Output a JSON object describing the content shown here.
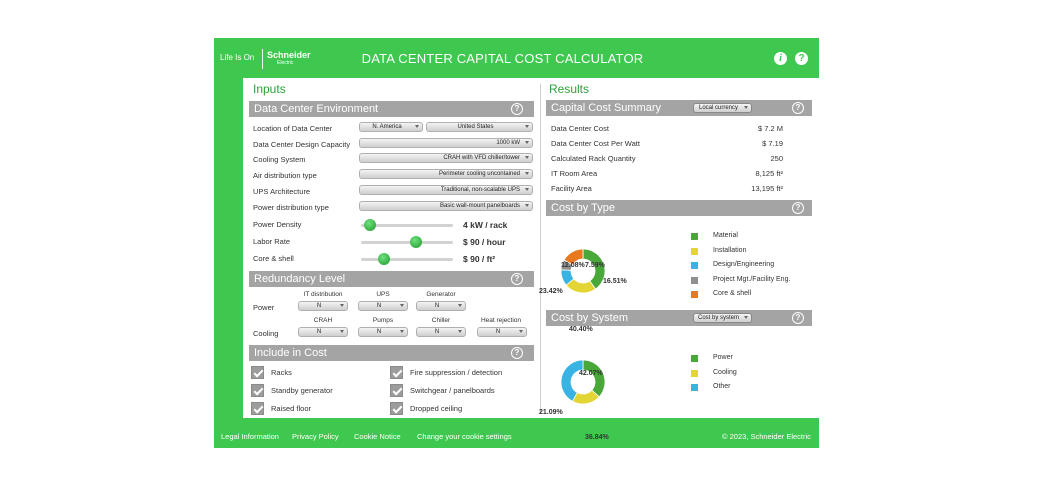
{
  "header": {
    "tagline": "Life Is On",
    "brand": "Schneider",
    "brand_sub": "Electric",
    "title": "DATA CENTER CAPITAL COST CALCULATOR",
    "info_icon": "i",
    "help_icon": "?"
  },
  "inputs": {
    "title": "Inputs",
    "environment": {
      "title": "Data Center Environment",
      "location_label": "Location of Data Center",
      "region_value": "N. America",
      "country_value": "United States",
      "capacity_label": "Data Center Design Capacity",
      "capacity_value": "1000 kW",
      "cooling_label": "Cooling System",
      "cooling_value": "CRAH with VFD chiller/tower",
      "air_label": "Air distribution type",
      "air_value": "Perimeter cooling uncontained",
      "ups_label": "UPS Architecture",
      "ups_value": "Traditional, non-scalable UPS",
      "power_dist_label": "Power distribution type",
      "power_dist_value": "Basic wall-mount panelboards",
      "sliders": [
        {
          "label": "Power Density",
          "value": "4 kW / rack",
          "level": 0.1
        },
        {
          "label": "Labor Rate",
          "value": "$ 90 / hour",
          "level": 0.6
        },
        {
          "label": "Core & shell",
          "value": "$ 90 / ft²",
          "level": 0.25
        }
      ]
    },
    "redundancy": {
      "title": "Redundancy Level",
      "power_label": "Power",
      "cooling_label": "Cooling",
      "power_items": [
        {
          "label": "IT distribution",
          "value": "N"
        },
        {
          "label": "UPS",
          "value": "N"
        },
        {
          "label": "Generator",
          "value": "N"
        }
      ],
      "cooling_items": [
        {
          "label": "CRAH",
          "value": "N"
        },
        {
          "label": "Pumps",
          "value": "N"
        },
        {
          "label": "Chiller",
          "value": "N"
        },
        {
          "label": "Heat rejection",
          "value": "N"
        }
      ]
    },
    "include": {
      "title": "Include in Cost",
      "items": [
        {
          "label": "Racks",
          "checked": true
        },
        {
          "label": "Fire suppression / detection",
          "checked": true
        },
        {
          "label": "Standby generator",
          "checked": true
        },
        {
          "label": "Switchgear / panelboards",
          "checked": true
        },
        {
          "label": "Raised floor",
          "checked": true
        },
        {
          "label": "Dropped ceiling",
          "checked": true
        }
      ]
    }
  },
  "results": {
    "title": "Results",
    "summary": {
      "title": "Capital Cost Summary",
      "currency_select": "Local currency",
      "rows": [
        {
          "label": "Data Center Cost",
          "value": "$ 7.2 M"
        },
        {
          "label": "Data Center Cost Per Watt",
          "value": "$ 7.19"
        },
        {
          "label": "Calculated Rack Quantity",
          "value": "250"
        },
        {
          "label": "IT Room Area",
          "value": "8,125 ft²"
        },
        {
          "label": "Facility Area",
          "value": "13,195 ft²"
        }
      ]
    },
    "by_type": {
      "title": "Cost by Type"
    },
    "by_system": {
      "title": "Cost by System",
      "select": "Cost by system"
    }
  },
  "chart_data": [
    {
      "type": "pie",
      "title": "Cost by Type",
      "categories": [
        "Material",
        "Installation",
        "Design/Engineering",
        "Project Mgt./Facility Eng.",
        "Core & shell"
      ],
      "values": [
        40.4,
        23.42,
        12.08,
        7.59,
        16.51
      ],
      "labels": [
        "40.40%",
        "23.42%",
        "12.08%",
        "7.59%",
        "16.51%"
      ],
      "colors": [
        "#4aa83a",
        "#e3d634",
        "#39b3e3",
        "#8f8f8f",
        "#e8791f"
      ]
    },
    {
      "type": "pie",
      "title": "Cost by System",
      "categories": [
        "Power",
        "Cooling",
        "Other"
      ],
      "values": [
        36.84,
        21.09,
        42.07
      ],
      "labels": [
        "36.84%",
        "21.09%",
        "42.07%"
      ],
      "colors": [
        "#4aa83a",
        "#e3d634",
        "#39b3e3"
      ]
    }
  ],
  "footer": {
    "links": [
      "Legal Information",
      "Privacy Policy",
      "Cookie Notice",
      "Change your cookie settings"
    ],
    "copyright": "© 2023, Schneider Electric"
  }
}
